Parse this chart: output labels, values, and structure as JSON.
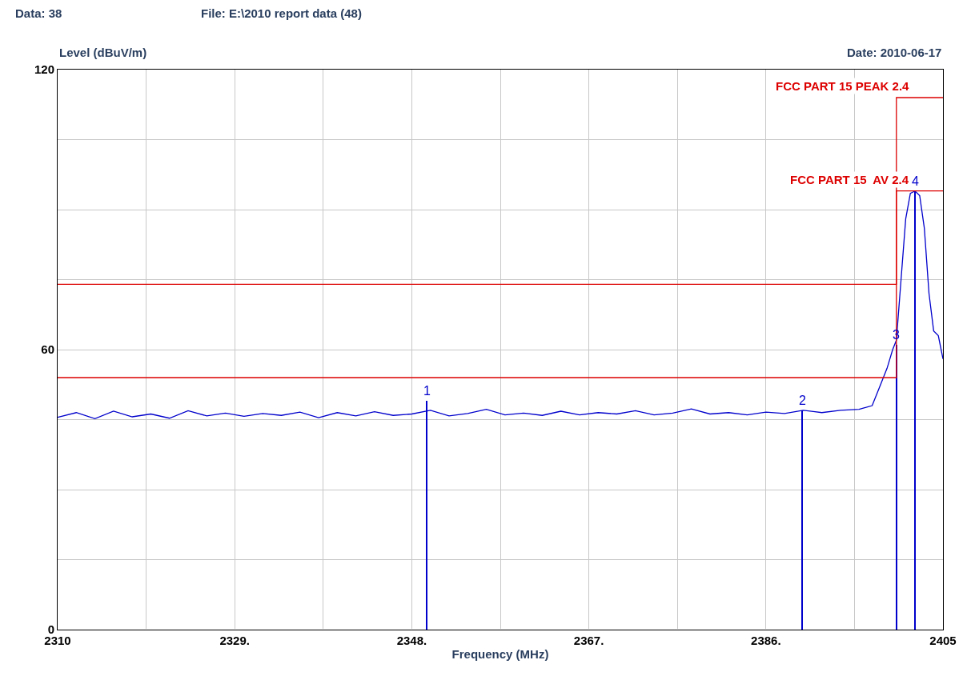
{
  "chart_data": {
    "type": "line",
    "title": "Data: 38",
    "subtitle": "File: E:\\2010 report data (48)",
    "xlabel": "Frequency (MHz)",
    "ylabel": "Level (dBuV/m)",
    "annotations": [
      "Date: 2010-06-17",
      {
        "text": "1",
        "x": 2349.6,
        "y": 49
      },
      {
        "text": "2",
        "x": 2389.9,
        "y": 47
      },
      {
        "text": "3",
        "x": 2400.0,
        "y": 61
      },
      {
        "text": "4",
        "x": 2402.0,
        "y": 94
      }
    ],
    "xlim": [
      2310,
      2405
    ],
    "ylim": [
      0,
      120
    ],
    "xticks": [
      2310,
      {
        "value": 2319.5,
        "label": null
      },
      {
        "value": 2329,
        "label": "2329."
      },
      {
        "value": 2338.5,
        "label": null
      },
      {
        "value": 2348,
        "label": "2348."
      },
      {
        "value": 2357.5,
        "label": null
      },
      {
        "value": 2367,
        "label": "2367."
      },
      {
        "value": 2376.5,
        "label": null
      },
      {
        "value": 2386,
        "label": "2386."
      },
      {
        "value": 2395.5,
        "label": null
      },
      2405
    ],
    "yticks": [
      0,
      {
        "value": 15,
        "label": null
      },
      {
        "value": 30,
        "label": null
      },
      {
        "value": 45,
        "label": null
      },
      60,
      {
        "value": 75,
        "label": null
      },
      {
        "value": 90,
        "label": null
      },
      {
        "value": 105,
        "label": null
      },
      120
    ],
    "grid": true,
    "series": [
      {
        "color": "#0000cc",
        "x": [
          2310,
          2312,
          2314,
          2316,
          2318,
          2320,
          2322,
          2324,
          2326,
          2328,
          2330,
          2332,
          2334,
          2336,
          2338,
          2340,
          2342,
          2344,
          2346,
          2348,
          2350,
          2352,
          2354,
          2356,
          2358,
          2360,
          2362,
          2364,
          2366,
          2368,
          2370,
          2372,
          2374,
          2376,
          2378,
          2380,
          2382,
          2384,
          2386,
          2388,
          2390,
          2392,
          2394,
          2396,
          2397.4,
          2398.2,
          2399.0,
          2399.6,
          2400.0,
          2400.5,
          2401.0,
          2401.5,
          2402.0,
          2402.5,
          2403.0,
          2403.5,
          2404.0,
          2404.5,
          2405.0
        ],
        "values": [
          45.5,
          46.5,
          45.2,
          46.8,
          45.6,
          46.2,
          45.3,
          46.9,
          45.8,
          46.4,
          45.7,
          46.3,
          45.9,
          46.6,
          45.4,
          46.5,
          45.8,
          46.7,
          45.9,
          46.2,
          47.0,
          45.8,
          46.3,
          47.2,
          46.0,
          46.4,
          45.9,
          46.8,
          46.0,
          46.5,
          46.2,
          46.9,
          46.0,
          46.4,
          47.3,
          46.2,
          46.5,
          46.0,
          46.6,
          46.3,
          47.0,
          46.5,
          47.0,
          47.2,
          48.0,
          52.0,
          56.0,
          60.0,
          62.0,
          75.0,
          88.0,
          93.5,
          94.0,
          93.0,
          86.0,
          72.0,
          64.0,
          63.0,
          58.0
        ]
      },
      {
        "name": "FCC PART 15 PEAK 2.4",
        "color": "#dd0000",
        "x": [
          2310,
          2400,
          2400,
          2405
        ],
        "values": [
          74,
          74,
          114,
          114
        ]
      },
      {
        "name": "FCC PART 15  AV 2.4",
        "color": "#dd0000",
        "x": [
          2310,
          2400,
          2400,
          2405
        ],
        "values": [
          54,
          54,
          94,
          94
        ]
      },
      {
        "type": "bar",
        "color": "#0000cc",
        "x": [
          2349.6,
          2389.9,
          2400.0,
          2402.0
        ],
        "values": [
          49,
          47,
          61,
          94
        ]
      }
    ]
  }
}
